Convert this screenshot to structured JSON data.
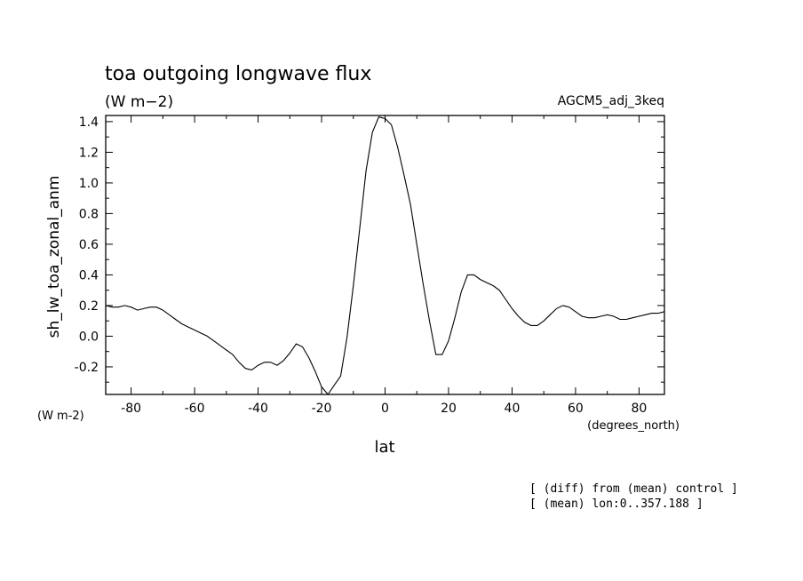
{
  "chart_data": {
    "type": "line",
    "title": "toa outgoing longwave flux",
    "units": "(W m−2)",
    "experiment": "AGCM5_adj_3keq",
    "ylabel": "sh_lw_toa_zonal_anm",
    "yunits": "(W m-2)",
    "xlabel": "lat",
    "xunits": "(degrees_north)",
    "xlim": [
      -88,
      88
    ],
    "ylim": [
      -0.38,
      1.44
    ],
    "xticks": [
      "-80",
      "-60",
      "-40",
      "-20",
      "0",
      "20",
      "40",
      "60",
      "80"
    ],
    "yticks": [
      "-0.2",
      "0.0",
      "0.2",
      "0.4",
      "0.6",
      "0.8",
      "1.0",
      "1.2",
      "1.4"
    ],
    "notes": [
      "[ (diff) from (mean) control ]",
      "[ (mean) lon:0..357.188 ]"
    ],
    "grid": false,
    "series": [
      {
        "x": [
          -88,
          -86,
          -84,
          -82,
          -80,
          -78,
          -76,
          -74,
          -72,
          -70,
          -68,
          -66,
          -64,
          -62,
          -60,
          -58,
          -56,
          -54,
          -52,
          -50,
          -48,
          -46,
          -44,
          -42,
          -40,
          -38,
          -36,
          -34,
          -32,
          -30,
          -28,
          -26,
          -24,
          -22,
          -20,
          -18,
          -16,
          -14,
          -12,
          -10,
          -8,
          -6,
          -4,
          -2,
          0,
          2,
          4,
          6,
          8,
          10,
          12,
          14,
          16,
          18,
          20,
          22,
          24,
          26,
          28,
          30,
          32,
          34,
          36,
          38,
          40,
          42,
          44,
          46,
          48,
          50,
          52,
          54,
          56,
          58,
          60,
          62,
          64,
          66,
          68,
          70,
          72,
          74,
          76,
          78,
          80,
          82,
          84,
          86,
          88
        ],
        "values": [
          0.2,
          0.19,
          0.19,
          0.2,
          0.19,
          0.17,
          0.18,
          0.19,
          0.19,
          0.17,
          0.14,
          0.11,
          0.08,
          0.06,
          0.04,
          0.02,
          0.0,
          -0.03,
          -0.06,
          -0.09,
          -0.12,
          -0.17,
          -0.21,
          -0.22,
          -0.19,
          -0.17,
          -0.17,
          -0.19,
          -0.16,
          -0.11,
          -0.05,
          -0.07,
          -0.14,
          -0.23,
          -0.33,
          -0.38,
          -0.32,
          -0.26,
          -0.01,
          0.33,
          0.7,
          1.08,
          1.33,
          1.43,
          1.42,
          1.38,
          1.23,
          1.05,
          0.86,
          0.6,
          0.34,
          0.1,
          -0.12,
          -0.12,
          -0.03,
          0.12,
          0.29,
          0.4,
          0.4,
          0.37,
          0.35,
          0.33,
          0.3,
          0.24,
          0.18,
          0.13,
          0.09,
          0.07,
          0.07,
          0.1,
          0.14,
          0.18,
          0.2,
          0.19,
          0.16,
          0.13,
          0.12,
          0.12,
          0.13,
          0.14,
          0.13,
          0.11,
          0.11,
          0.12,
          0.13,
          0.14,
          0.15,
          0.15,
          0.16
        ]
      }
    ]
  }
}
